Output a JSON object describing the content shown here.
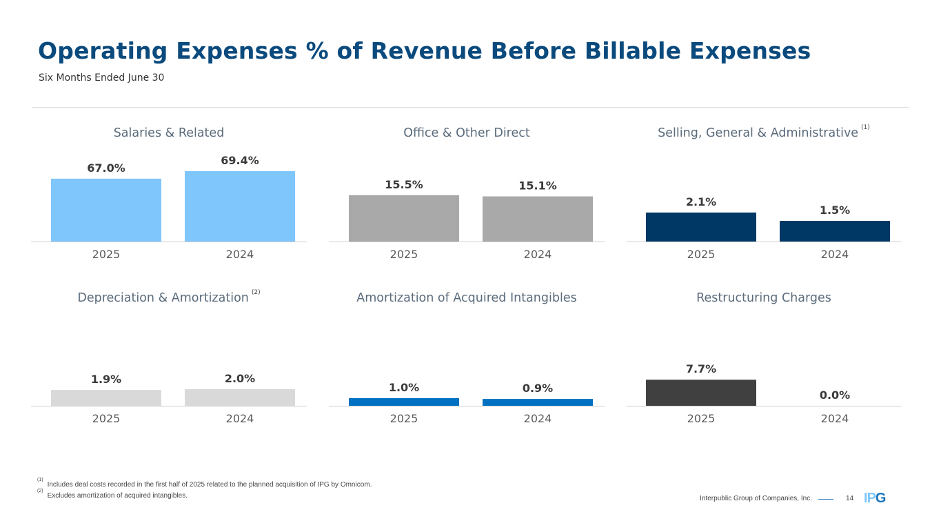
{
  "title": "Operating Expenses % of Revenue Before Billable Expenses",
  "subtitle": "Six Months Ended June 30",
  "chart_data": [
    {
      "type": "bar",
      "title": "Salaries & Related",
      "footnote_ref": "",
      "categories": [
        "2025",
        "2024"
      ],
      "values": [
        67.0,
        69.4
      ],
      "labels": [
        "67.0%",
        "69.4%"
      ],
      "ylim": [
        47.1,
        75.5
      ],
      "color": "#7fc6fc"
    },
    {
      "type": "bar",
      "title": "Office & Other Direct",
      "footnote_ref": "",
      "categories": [
        "2025",
        "2024"
      ],
      "values": [
        15.5,
        15.1
      ],
      "labels": [
        "15.5%",
        "15.1%"
      ],
      "ylim": [
        0,
        30
      ],
      "color": "#a9a9a9"
    },
    {
      "type": "bar",
      "title": "Selling, General & Administrative",
      "footnote_ref": "(1)",
      "categories": [
        "2025",
        "2024"
      ],
      "values": [
        2.1,
        1.5
      ],
      "labels": [
        "2.1%",
        "1.5%"
      ],
      "ylim": [
        0,
        6.5
      ],
      "color": "#003865"
    },
    {
      "type": "bar",
      "title": "Depreciation & Amortization",
      "footnote_ref": "(2)",
      "categories": [
        "2025",
        "2024"
      ],
      "values": [
        1.9,
        2.0
      ],
      "labels": [
        "1.9%",
        "2.0%"
      ],
      "ylim": [
        0,
        10.8
      ],
      "color": "#d9d9d9"
    },
    {
      "type": "bar",
      "title": "Amortization of Acquired Intangibles",
      "footnote_ref": "",
      "categories": [
        "2025",
        "2024"
      ],
      "values": [
        1.0,
        0.9
      ],
      "labels": [
        "1.0%",
        "0.9%"
      ],
      "ylim": [
        0,
        11.8
      ],
      "color": "#0070c0"
    },
    {
      "type": "bar",
      "title": "Restructuring Charges",
      "footnote_ref": "",
      "categories": [
        "2025",
        "2024"
      ],
      "values": [
        7.7,
        0.0
      ],
      "labels": [
        "7.7%",
        "0.0%"
      ],
      "ylim": [
        0,
        26.5
      ],
      "color": "#404040"
    }
  ],
  "footnotes": [
    {
      "ref": "(1)",
      "text": "Includes deal costs recorded in the first half of 2025 related to the planned acquisition of IPG by Omnicom."
    },
    {
      "ref": "(2)",
      "text": "Excludes amortization of acquired intangibles."
    }
  ],
  "footer": {
    "company": "Interpublic Group of Companies, Inc.",
    "page": "14",
    "logo": "IPG"
  }
}
